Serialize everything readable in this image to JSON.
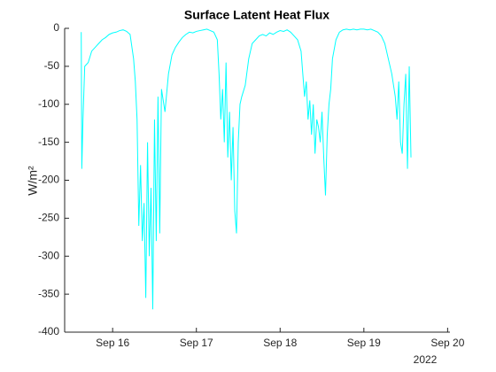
{
  "chart_data": {
    "type": "line",
    "title": "Surface Latent Heat Flux",
    "y_label": "W/m²",
    "x_year_label": "2022",
    "xlim": [
      "2022-09-15T10:15",
      "2022-09-20T00:40"
    ],
    "xticks": [
      {
        "value": "2022-09-16T00:00",
        "label": "Sep 16"
      },
      {
        "value": "2022-09-17T00:00",
        "label": "Sep 17"
      },
      {
        "value": "2022-09-18T00:00",
        "label": "Sep 18"
      },
      {
        "value": "2022-09-19T00:00",
        "label": "Sep 19"
      },
      {
        "value": "2022-09-20T00:00",
        "label": "Sep 20"
      }
    ],
    "ylim": [
      -400,
      0
    ],
    "yticks": [
      -400,
      -350,
      -300,
      -250,
      -200,
      -150,
      -100,
      -50,
      0
    ],
    "grid": false,
    "series": [
      {
        "color": "#00ffff",
        "x": [
          "2022-09-15T15:00",
          "2022-09-15T15:10",
          "2022-09-15T15:30",
          "2022-09-15T16:00",
          "2022-09-15T17:00",
          "2022-09-15T18:00",
          "2022-09-15T19:00",
          "2022-09-15T20:00",
          "2022-09-15T21:00",
          "2022-09-15T22:00",
          "2022-09-15T23:00",
          "2022-09-16T00:00",
          "2022-09-16T01:00",
          "2022-09-16T02:00",
          "2022-09-16T03:00",
          "2022-09-16T04:00",
          "2022-09-16T05:00",
          "2022-09-16T06:00",
          "2022-09-16T06:30",
          "2022-09-16T07:00",
          "2022-09-16T07:30",
          "2022-09-16T08:00",
          "2022-09-16T08:30",
          "2022-09-16T09:00",
          "2022-09-16T09:30",
          "2022-09-16T10:00",
          "2022-09-16T10:30",
          "2022-09-16T11:00",
          "2022-09-16T11:30",
          "2022-09-16T12:00",
          "2022-09-16T12:30",
          "2022-09-16T13:00",
          "2022-09-16T13:30",
          "2022-09-16T14:00",
          "2022-09-16T15:00",
          "2022-09-16T16:00",
          "2022-09-16T17:00",
          "2022-09-16T18:00",
          "2022-09-16T19:00",
          "2022-09-16T20:00",
          "2022-09-16T21:00",
          "2022-09-16T22:00",
          "2022-09-16T23:00",
          "2022-09-17T00:00",
          "2022-09-17T01:00",
          "2022-09-17T02:00",
          "2022-09-17T03:00",
          "2022-09-17T04:00",
          "2022-09-17T05:00",
          "2022-09-17T06:00",
          "2022-09-17T06:30",
          "2022-09-17T07:00",
          "2022-09-17T07:30",
          "2022-09-17T08:00",
          "2022-09-17T08:30",
          "2022-09-17T09:00",
          "2022-09-17T09:30",
          "2022-09-17T10:00",
          "2022-09-17T10:30",
          "2022-09-17T11:00",
          "2022-09-17T11:30",
          "2022-09-17T12:00",
          "2022-09-17T12:30",
          "2022-09-17T13:00",
          "2022-09-17T14:00",
          "2022-09-17T15:00",
          "2022-09-17T16:00",
          "2022-09-17T17:00",
          "2022-09-17T18:00",
          "2022-09-17T19:00",
          "2022-09-17T20:00",
          "2022-09-17T21:00",
          "2022-09-17T22:00",
          "2022-09-17T23:00",
          "2022-09-18T00:00",
          "2022-09-18T01:00",
          "2022-09-18T02:00",
          "2022-09-18T03:00",
          "2022-09-18T04:00",
          "2022-09-18T05:00",
          "2022-09-18T06:00",
          "2022-09-18T06:30",
          "2022-09-18T07:00",
          "2022-09-18T07:30",
          "2022-09-18T08:00",
          "2022-09-18T08:30",
          "2022-09-18T09:00",
          "2022-09-18T09:30",
          "2022-09-18T10:00",
          "2022-09-18T10:30",
          "2022-09-18T11:00",
          "2022-09-18T11:30",
          "2022-09-18T12:00",
          "2022-09-18T12:30",
          "2022-09-18T13:00",
          "2022-09-18T13:30",
          "2022-09-18T14:00",
          "2022-09-18T14:30",
          "2022-09-18T15:00",
          "2022-09-18T16:00",
          "2022-09-18T17:00",
          "2022-09-18T18:00",
          "2022-09-18T19:00",
          "2022-09-18T20:00",
          "2022-09-18T21:00",
          "2022-09-18T22:00",
          "2022-09-18T23:00",
          "2022-09-19T00:00",
          "2022-09-19T01:00",
          "2022-09-19T02:00",
          "2022-09-19T03:00",
          "2022-09-19T04:00",
          "2022-09-19T05:00",
          "2022-09-19T06:00",
          "2022-09-19T07:00",
          "2022-09-19T08:00",
          "2022-09-19T09:00",
          "2022-09-19T09:30",
          "2022-09-19T10:00",
          "2022-09-19T10:30",
          "2022-09-19T11:00",
          "2022-09-19T11:30",
          "2022-09-19T12:00",
          "2022-09-19T12:30",
          "2022-09-19T13:00",
          "2022-09-19T13:30"
        ],
        "values": [
          -5,
          -185,
          -120,
          -50,
          -45,
          -30,
          -25,
          -20,
          -15,
          -12,
          -8,
          -6,
          -5,
          -3,
          -2,
          -4,
          -8,
          -40,
          -70,
          -120,
          -260,
          -180,
          -280,
          -230,
          -355,
          -150,
          -300,
          -210,
          -370,
          -120,
          -280,
          -90,
          -270,
          -80,
          -110,
          -60,
          -35,
          -25,
          -18,
          -12,
          -8,
          -5,
          -6,
          -4,
          -3,
          -2,
          -1,
          -3,
          -5,
          -15,
          -60,
          -120,
          -80,
          -150,
          -45,
          -170,
          -110,
          -200,
          -130,
          -240,
          -270,
          -150,
          -100,
          -90,
          -75,
          -40,
          -20,
          -15,
          -10,
          -8,
          -10,
          -6,
          -8,
          -5,
          -3,
          -4,
          -2,
          -5,
          -10,
          -15,
          -30,
          -60,
          -90,
          -70,
          -120,
          -95,
          -140,
          -100,
          -165,
          -120,
          -130,
          -150,
          -110,
          -170,
          -220,
          -140,
          -100,
          -80,
          -40,
          -15,
          -5,
          -2,
          -1,
          -2,
          -1,
          -2,
          -1,
          -1,
          -2,
          -1,
          -3,
          -5,
          -10,
          -20,
          -40,
          -60,
          -90,
          -120,
          -70,
          -150,
          -165,
          -100,
          -60,
          -185,
          -50,
          -170
        ]
      }
    ]
  }
}
